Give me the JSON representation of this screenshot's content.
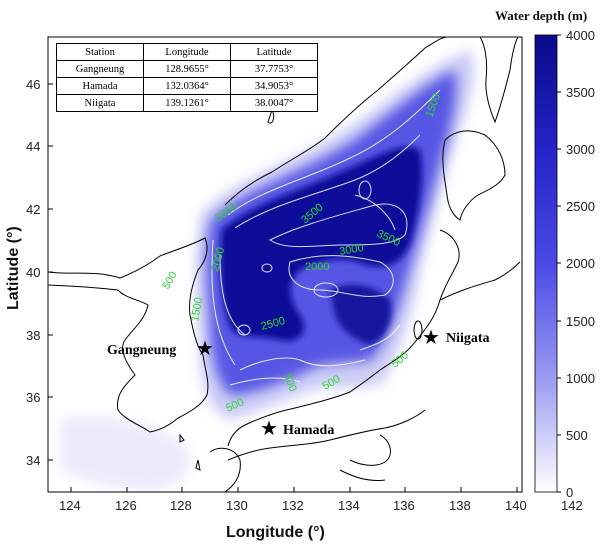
{
  "colorbar": {
    "title": "Water depth (m)",
    "ticks": [
      "4000",
      "3500",
      "3000",
      "2500",
      "2000",
      "1500",
      "1000",
      "500",
      "0"
    ],
    "color_deep": "#0d0d8c",
    "color_shallow": "#ffffff"
  },
  "axes": {
    "xlabel": "Longitude (°)",
    "ylabel": "Latitude (°)",
    "xticks": [
      "124",
      "126",
      "128",
      "130",
      "132",
      "134",
      "136",
      "138",
      "140",
      "142"
    ],
    "yticks": [
      "46",
      "44",
      "42",
      "40",
      "38",
      "36",
      "34"
    ]
  },
  "table": {
    "headers": [
      "Station",
      "Longitude",
      "Latitude"
    ],
    "rows": [
      [
        "Gangneung",
        "128.9655°",
        "37.7753°"
      ],
      [
        "Hamada",
        "132.0364°",
        "34.9053°"
      ],
      [
        "Niigata",
        "139.1261°",
        "38.0047°"
      ]
    ]
  },
  "stations": {
    "gangneung": "Gangneung",
    "hamada": "Hamada",
    "niigata": "Niigata"
  },
  "contour_labels": [
    "500",
    "1000",
    "1500",
    "2000",
    "2500",
    "3000",
    "3500"
  ]
}
